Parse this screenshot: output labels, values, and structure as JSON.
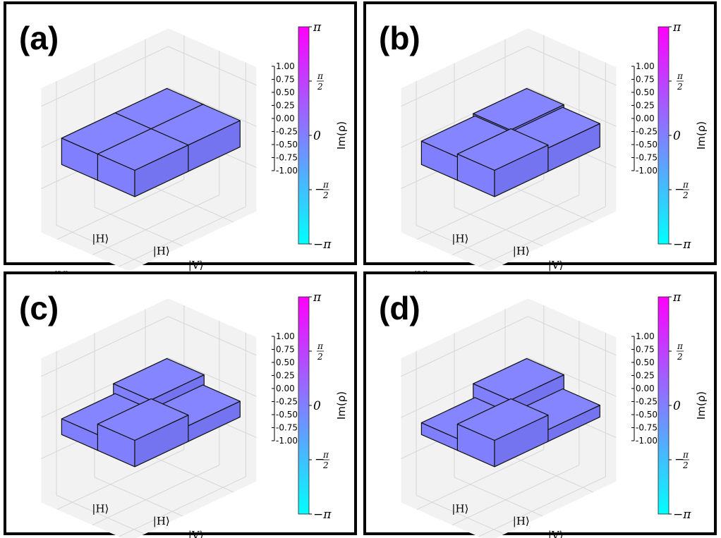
{
  "colors": {
    "bar_face": "#8080ff",
    "bar_top": "#8585ff",
    "bar_side": "#7474f0",
    "pane": "#f2f2f2",
    "grid": "#d6d6d6",
    "colormap_top": "#ff00ff",
    "colormap_mid": "#8080ff",
    "colormap_bottom": "#00ffff"
  },
  "chart_data": [
    {
      "type": "bar3d",
      "panel_label": "(a)",
      "x_tick_labels": [
        "|H⟩",
        "|V⟩"
      ],
      "y_tick_labels": [
        "|H⟩",
        "|V⟩"
      ],
      "zlim": [
        -1.0,
        1.0
      ],
      "z_tick_labels": [
        "1.00",
        "0.75",
        "0.50",
        "0.25",
        "0.00",
        "-0.25",
        "-0.50",
        "-0.75",
        "-1.00"
      ],
      "bars": [
        {
          "row": "|H⟩",
          "col": "|H⟩",
          "value": 0.5
        },
        {
          "row": "|H⟩",
          "col": "|V⟩",
          "value": 0.5
        },
        {
          "row": "|V⟩",
          "col": "|H⟩",
          "value": 0.5
        },
        {
          "row": "|V⟩",
          "col": "|V⟩",
          "value": 0.5
        }
      ],
      "colorbar": {
        "label": "Im(ρ)",
        "ticks": [
          "π",
          "π/2",
          "0",
          "−π/2",
          "−π"
        ]
      }
    },
    {
      "type": "bar3d",
      "panel_label": "(b)",
      "x_tick_labels": [
        "|H⟩",
        "|V⟩"
      ],
      "y_tick_labels": [
        "|H⟩",
        "|V⟩"
      ],
      "zlim": [
        -1.0,
        1.0
      ],
      "z_tick_labels": [
        "1.00",
        "0.75",
        "0.50",
        "0.25",
        "0.00",
        "-0.25",
        "-0.50",
        "-0.75",
        "-1.00"
      ],
      "bars": [
        {
          "row": "|H⟩",
          "col": "|H⟩",
          "value": 0.5
        },
        {
          "row": "|H⟩",
          "col": "|V⟩",
          "value": 0.4
        },
        {
          "row": "|V⟩",
          "col": "|H⟩",
          "value": 0.4
        },
        {
          "row": "|V⟩",
          "col": "|V⟩",
          "value": 0.5
        }
      ],
      "colorbar": {
        "label": "Im(ρ)",
        "ticks": [
          "π",
          "π/2",
          "0",
          "−π/2",
          "−π"
        ]
      }
    },
    {
      "type": "bar3d",
      "panel_label": "(c)",
      "x_tick_labels": [
        "|H⟩",
        "|V⟩"
      ],
      "y_tick_labels": [
        "|H⟩",
        "|V⟩"
      ],
      "zlim": [
        -1.0,
        1.0
      ],
      "z_tick_labels": [
        "1.00",
        "0.75",
        "0.50",
        "0.25",
        "0.00",
        "-0.25",
        "-0.50",
        "-0.75",
        "-1.00"
      ],
      "bars": [
        {
          "row": "|H⟩",
          "col": "|H⟩",
          "value": 0.5
        },
        {
          "row": "|H⟩",
          "col": "|V⟩",
          "value": 0.15
        },
        {
          "row": "|V⟩",
          "col": "|H⟩",
          "value": 0.15
        },
        {
          "row": "|V⟩",
          "col": "|V⟩",
          "value": 0.5
        }
      ],
      "colorbar": {
        "label": "Im(ρ)",
        "ticks": [
          "π",
          "π/2",
          "0",
          "−π/2",
          "−π"
        ]
      }
    },
    {
      "type": "bar3d",
      "panel_label": "(d)",
      "x_tick_labels": [
        "|H⟩",
        "|V⟩"
      ],
      "y_tick_labels": [
        "|H⟩",
        "|V⟩"
      ],
      "zlim": [
        -1.0,
        1.0
      ],
      "z_tick_labels": [
        "1.00",
        "0.75",
        "0.50",
        "0.25",
        "0.00",
        "-0.25",
        "-0.50",
        "-0.75",
        "-1.00"
      ],
      "bars": [
        {
          "row": "|H⟩",
          "col": "|H⟩",
          "value": 0.5
        },
        {
          "row": "|H⟩",
          "col": "|V⟩",
          "value": 0.02
        },
        {
          "row": "|V⟩",
          "col": "|H⟩",
          "value": 0.02
        },
        {
          "row": "|V⟩",
          "col": "|V⟩",
          "value": 0.5
        }
      ],
      "colorbar": {
        "label": "Im(ρ)",
        "ticks": [
          "π",
          "π/2",
          "0",
          "−π/2",
          "−π"
        ]
      }
    }
  ]
}
